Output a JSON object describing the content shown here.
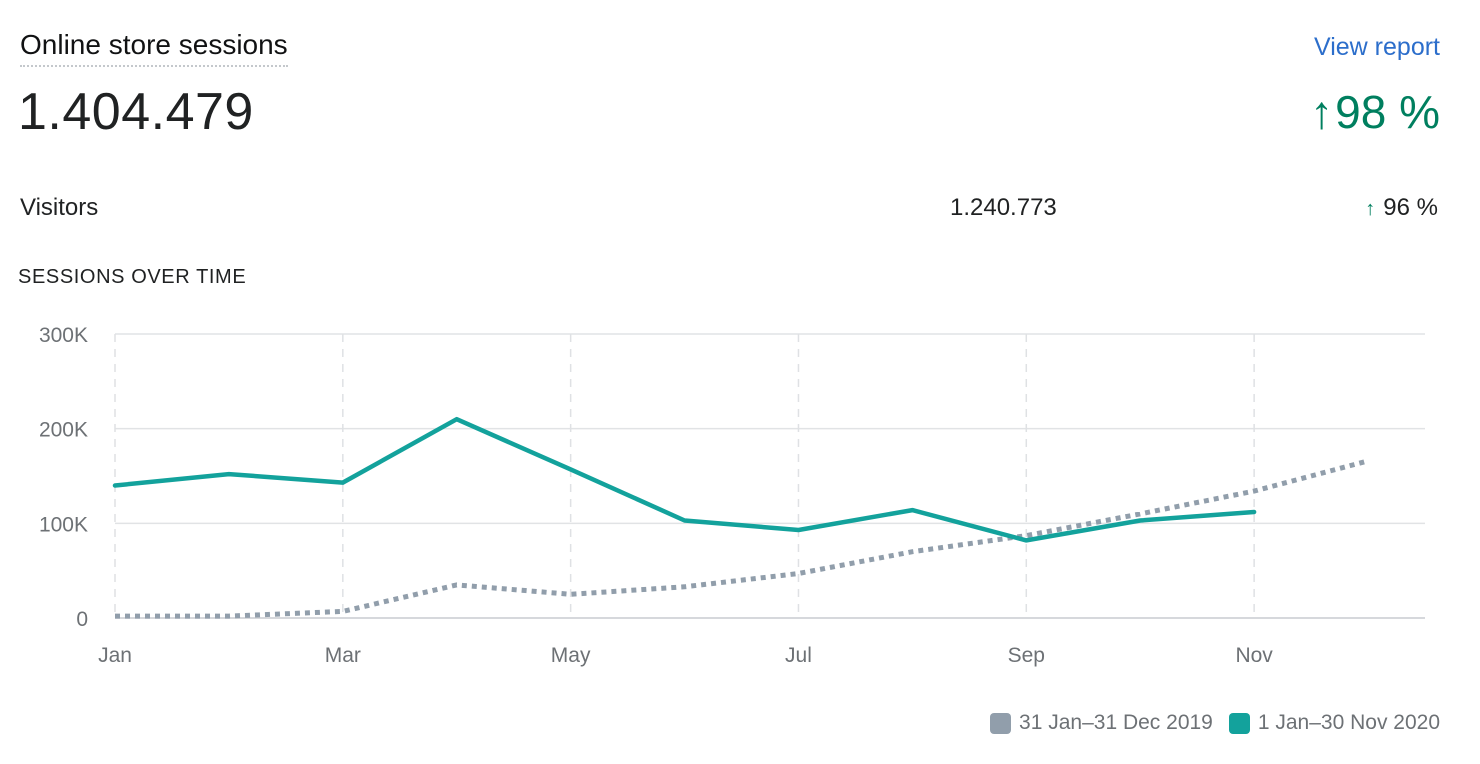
{
  "header": {
    "title": "Online store sessions",
    "view_report": "View report",
    "total_sessions": "1.404.479",
    "total_change_arrow": "↑",
    "total_change": "98 %"
  },
  "visitors": {
    "label": "Visitors",
    "value": "1.240.773",
    "change_arrow": "↑",
    "change": "96 %"
  },
  "section_title": "SESSIONS OVER TIME",
  "colors": {
    "current": "#13a29c",
    "previous": "#919eab",
    "positive": "#007f5f",
    "link": "#2c6ecb"
  },
  "chart_data": {
    "type": "line",
    "y_ticks": [
      {
        "value": 0,
        "label": "0"
      },
      {
        "value": 100000,
        "label": "100K"
      },
      {
        "value": 200000,
        "label": "200K"
      },
      {
        "value": 300000,
        "label": "300K"
      }
    ],
    "ylim": [
      0,
      300000
    ],
    "xlim": [
      0,
      11.5
    ],
    "x_ticks": [
      {
        "month": 0,
        "label": "Jan"
      },
      {
        "month": 2,
        "label": "Mar"
      },
      {
        "month": 4,
        "label": "May"
      },
      {
        "month": 6,
        "label": "Jul"
      },
      {
        "month": 8,
        "label": "Sep"
      },
      {
        "month": 10,
        "label": "Nov"
      }
    ],
    "grid": true,
    "legend_position": "bottom-right",
    "series": [
      {
        "name": "31 Jan–31 Dec 2019",
        "style": "dotted",
        "color": "#919eab",
        "x": [
          0,
          1,
          2,
          3,
          4,
          5,
          6,
          7,
          8,
          9,
          10,
          11
        ],
        "values": [
          2000,
          2000,
          7000,
          35000,
          25000,
          33000,
          47000,
          70000,
          87000,
          110000,
          134000,
          166000
        ]
      },
      {
        "name": "1 Jan–30 Nov 2020",
        "style": "solid",
        "color": "#13a29c",
        "x": [
          0,
          1,
          2,
          3,
          4,
          5,
          6,
          7,
          8,
          9,
          10
        ],
        "values": [
          140000,
          152000,
          143000,
          210000,
          157000,
          103000,
          93000,
          114000,
          82000,
          103000,
          112000
        ]
      }
    ]
  }
}
